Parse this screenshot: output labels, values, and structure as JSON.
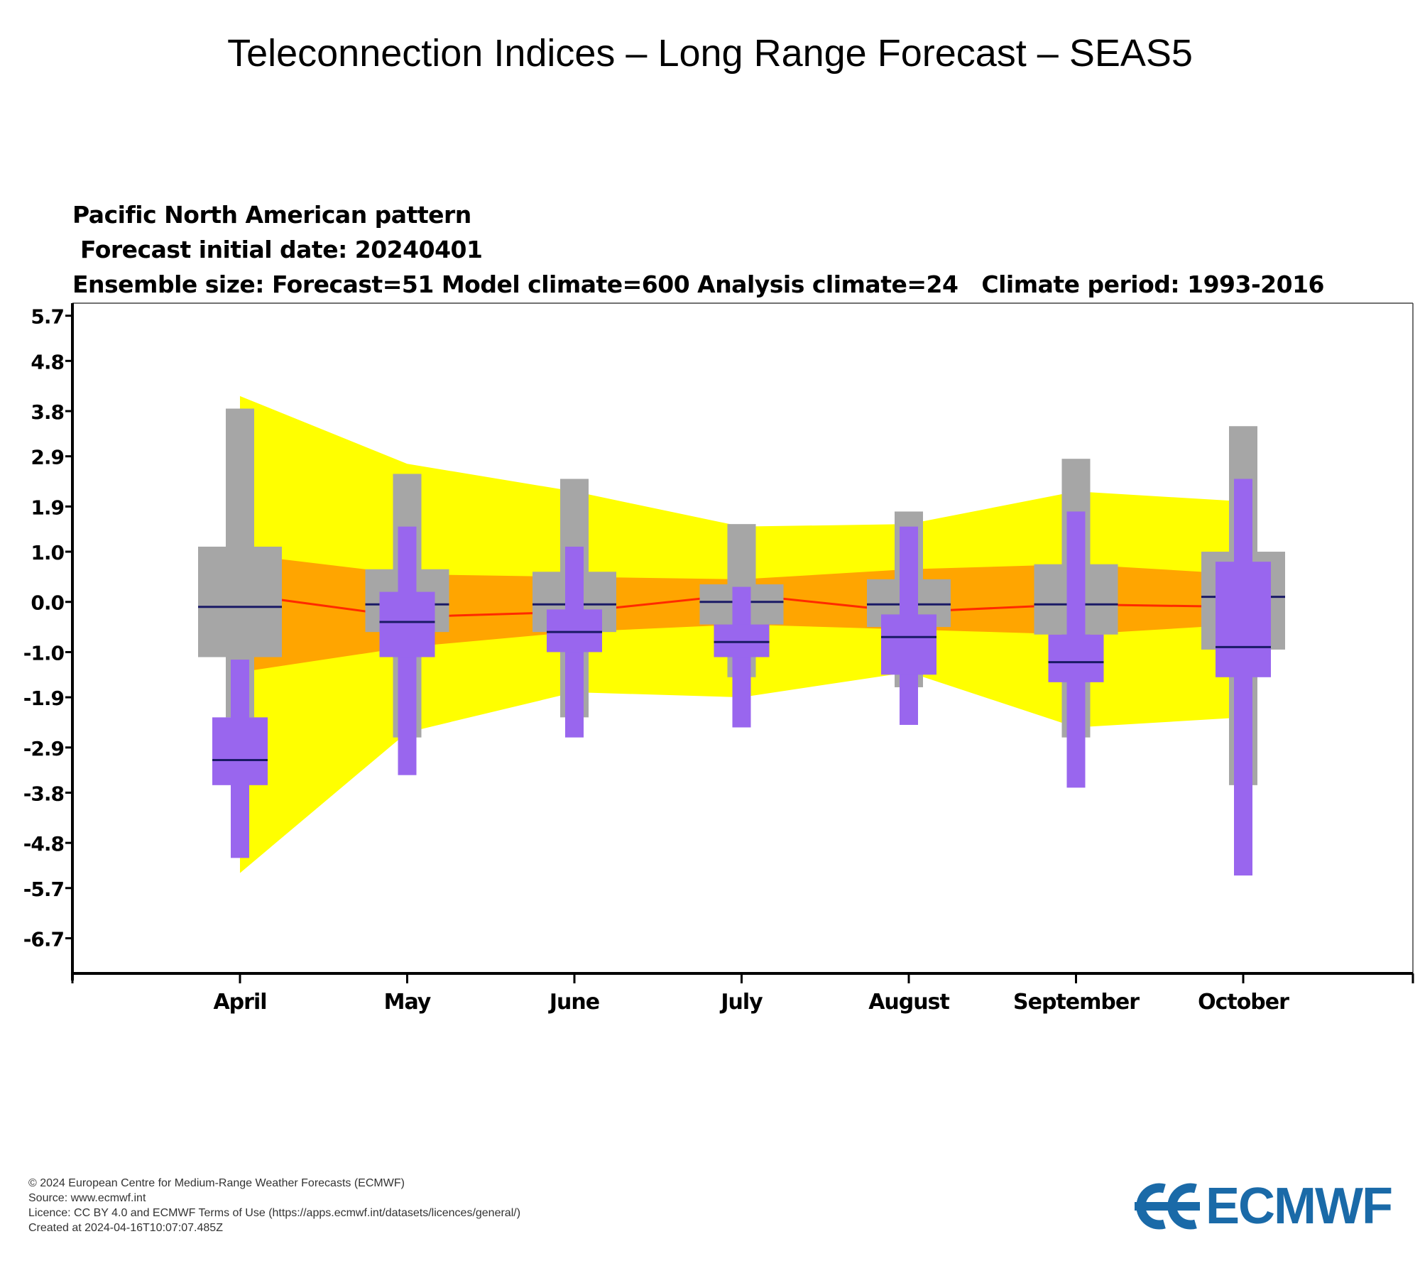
{
  "header": {
    "title": "Teleconnection Indices – Long Range Forecast – SEAS5"
  },
  "chart_data": {
    "type": "box",
    "title": "Pacific North American pattern",
    "subtitle_lines": [
      " Forecast initial date: 20240401",
      "Ensemble size: Forecast=51 Model climate=600 Analysis climate=24   Climate period: 1993-2016"
    ],
    "categories": [
      "April",
      "May",
      "June",
      "July",
      "August",
      "September",
      "October"
    ],
    "yticks": [
      "5.7",
      "4.8",
      "3.8",
      "2.9",
      "1.9",
      "1.0",
      "0.0",
      "-1.0",
      "-1.9",
      "-2.9",
      "-3.8",
      "-4.8",
      "-5.7",
      "-6.7"
    ],
    "ylim": [
      -7.4,
      5.95
    ],
    "grid": false,
    "colors": {
      "climate_outer_band": "#ffff00",
      "climate_inner_band": "#ffa500",
      "climate_median_line": "#ff2a00",
      "model_climate_box": "#a6a6a6",
      "forecast_box": "#9966ee",
      "median_tick": "#1a1a66"
    },
    "series": [
      {
        "role": "analysis-climate-envelope",
        "outer_upper": [
          4.1,
          2.75,
          2.2,
          1.5,
          1.55,
          2.2,
          2.0
        ],
        "outer_lower": [
          -5.4,
          -2.6,
          -1.8,
          -1.9,
          -1.4,
          -2.5,
          -2.3
        ],
        "inner_upper": [
          0.95,
          0.55,
          0.5,
          0.45,
          0.65,
          0.75,
          0.55
        ],
        "inner_lower": [
          -1.4,
          -0.9,
          -0.6,
          -0.45,
          -0.55,
          -0.65,
          -0.45
        ],
        "median": [
          0.15,
          -0.3,
          -0.2,
          0.15,
          -0.2,
          -0.05,
          -0.1
        ]
      },
      {
        "role": "model-climate",
        "min": [
          -2.3,
          -2.7,
          -2.3,
          -1.5,
          -1.7,
          -2.7,
          -3.65
        ],
        "q25": [
          -1.1,
          -0.6,
          -0.6,
          -0.45,
          -0.5,
          -0.65,
          -0.95
        ],
        "median": [
          -0.1,
          -0.05,
          -0.05,
          0.0,
          -0.05,
          -0.05,
          0.1
        ],
        "q75": [
          1.1,
          0.65,
          0.6,
          0.35,
          0.45,
          0.75,
          1.0
        ],
        "max": [
          3.85,
          2.55,
          2.45,
          1.55,
          1.8,
          2.85,
          3.5
        ]
      },
      {
        "role": "forecast",
        "min": [
          -5.1,
          -3.45,
          -2.7,
          -2.5,
          -2.45,
          -3.7,
          -5.45
        ],
        "q25": [
          -3.65,
          -1.1,
          -1.0,
          -1.1,
          -1.45,
          -1.6,
          -1.5
        ],
        "median": [
          -3.15,
          -0.4,
          -0.6,
          -0.8,
          -0.7,
          -1.2,
          -0.9
        ],
        "q75": [
          -2.3,
          0.2,
          -0.15,
          -0.45,
          -0.25,
          -0.65,
          0.8
        ],
        "max": [
          -1.15,
          1.5,
          1.1,
          0.3,
          1.5,
          1.8,
          2.45
        ]
      }
    ]
  },
  "footer": {
    "lines": [
      "© 2024 European Centre for Medium-Range Weather Forecasts (ECMWF)",
      "Source: www.ecmwf.int",
      "Licence: CC BY 4.0 and ECMWF Terms of Use (https://apps.ecmwf.int/datasets/licences/general/)",
      "Created at 2024-04-16T10:07:07.485Z"
    ]
  },
  "logo": {
    "text": "ECMWF",
    "color": "#1a6aa8"
  }
}
